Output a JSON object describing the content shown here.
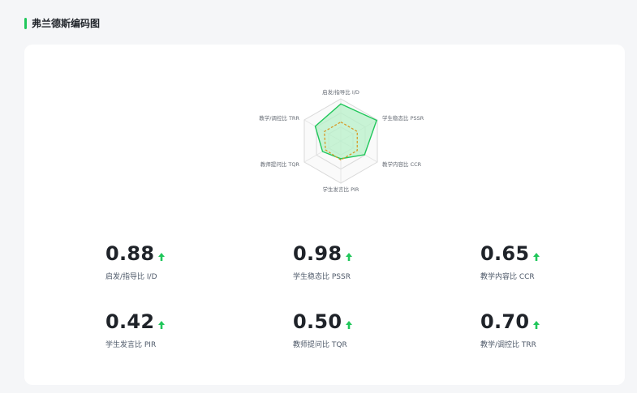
{
  "section": {
    "title": "弗兰德斯编码图"
  },
  "radar": {
    "axes": [
      {
        "key": "id",
        "label": "启发/指导比 I/D"
      },
      {
        "key": "pssr",
        "label": "学生稳态比 PSSR"
      },
      {
        "key": "ccr",
        "label": "教学内容比 CCR"
      },
      {
        "key": "pir",
        "label": "学生发言比 PIR"
      },
      {
        "key": "tqr",
        "label": "教师提问比 TQR"
      },
      {
        "key": "trr",
        "label": "教学/调控比 TRR"
      }
    ],
    "series": [
      {
        "values": [
          0.88,
          0.98,
          0.65,
          0.42,
          0.5,
          0.7
        ],
        "color": "#21c75b",
        "fill": "#b7f0c8"
      },
      {
        "values": [
          0.45,
          0.45,
          0.45,
          0.45,
          0.42,
          0.45
        ],
        "color": "#d69a28",
        "dashed": true
      }
    ],
    "rings": 3,
    "max": 1
  },
  "metrics": [
    {
      "value": "0.88",
      "label": "启发/指导比 I/D",
      "trend": "up"
    },
    {
      "value": "0.98",
      "label": "学生稳态比 PSSR",
      "trend": "up"
    },
    {
      "value": "0.65",
      "label": "教学内容比 CCR",
      "trend": "up"
    },
    {
      "value": "0.42",
      "label": "学生发言比 PIR",
      "trend": "up"
    },
    {
      "value": "0.50",
      "label": "教师提问比 TQR",
      "trend": "up"
    },
    {
      "value": "0.70",
      "label": "教学/调控比 TRR",
      "trend": "up"
    }
  ],
  "colors": {
    "accent": "#21c75b",
    "arrow": "#21c75b",
    "dashed": "#d69a28"
  }
}
